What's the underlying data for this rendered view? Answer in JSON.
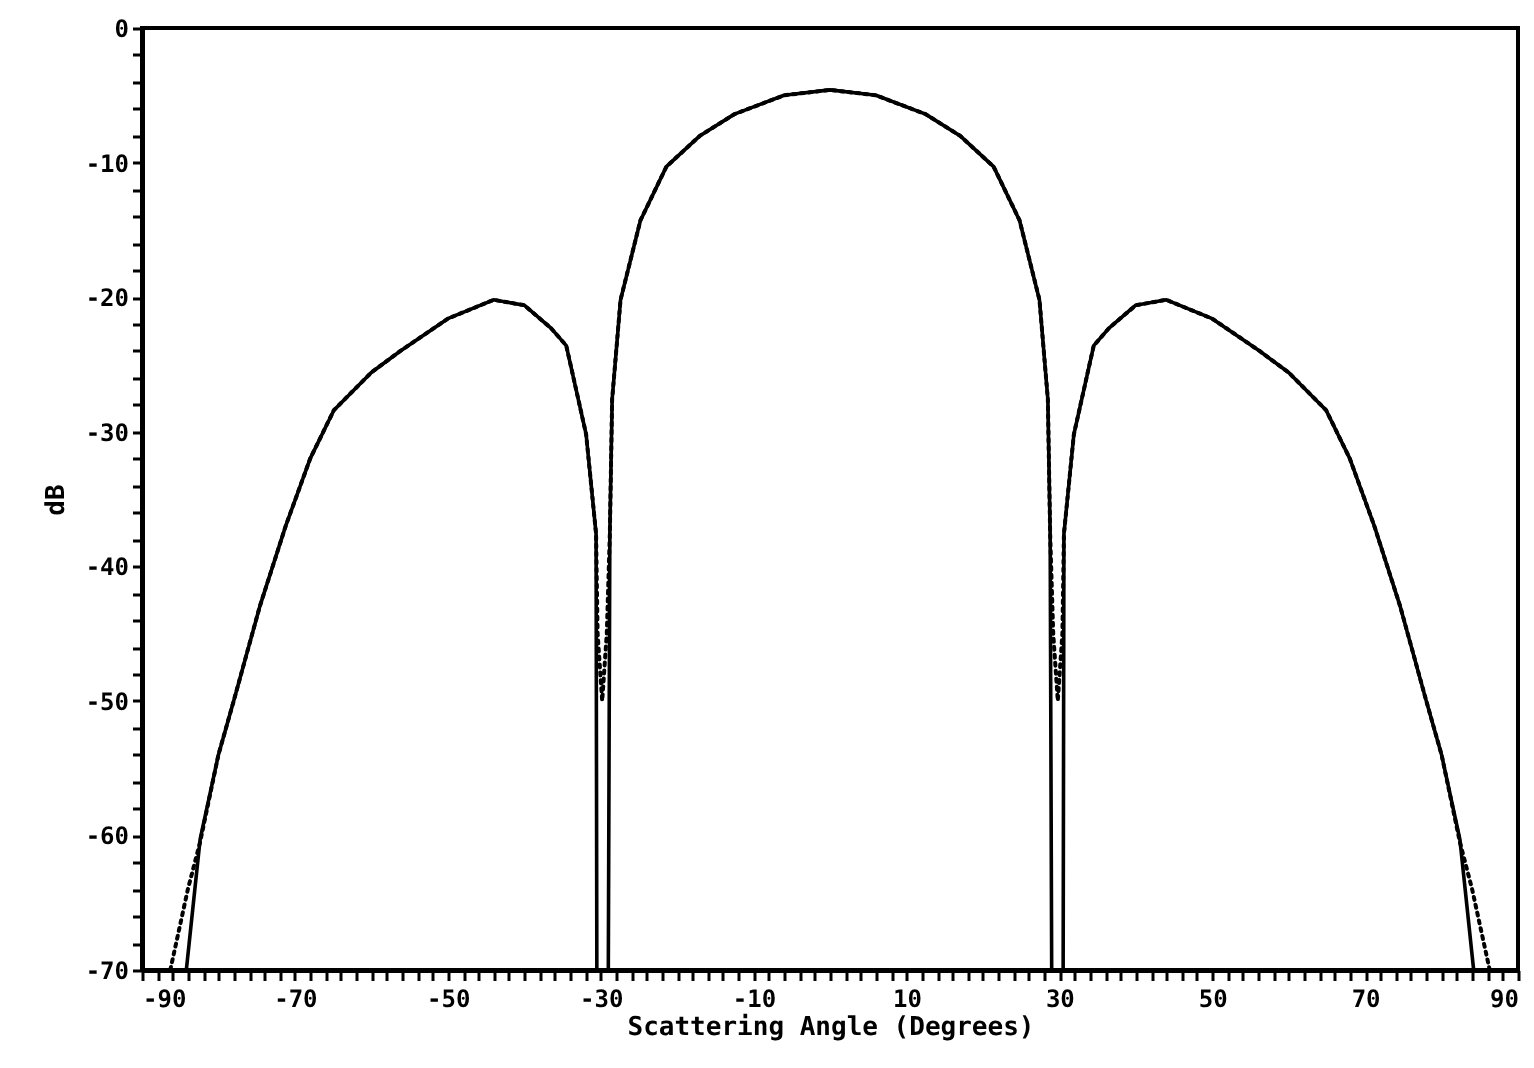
{
  "chart_data": {
    "type": "line",
    "xlabel": "Scattering Angle (Degrees)",
    "ylabel": "dB",
    "xlim": [
      -90,
      90
    ],
    "ylim": [
      -70,
      0
    ],
    "xticks": [
      -90,
      {
        "value": -88,
        "label": null
      },
      {
        "value": -86,
        "label": null
      },
      {
        "value": -84,
        "label": null
      },
      {
        "value": -82,
        "label": null
      },
      {
        "value": -80,
        "label": null
      },
      {
        "value": -78,
        "label": null
      },
      {
        "value": -76,
        "label": null
      },
      {
        "value": -74,
        "label": null
      },
      {
        "value": -72,
        "label": null
      },
      -70,
      {
        "value": -68,
        "label": null
      },
      {
        "value": -66,
        "label": null
      },
      {
        "value": -64,
        "label": null
      },
      {
        "value": -62,
        "label": null
      },
      {
        "value": -60,
        "label": null
      },
      {
        "value": -58,
        "label": null
      },
      {
        "value": -56,
        "label": null
      },
      {
        "value": -54,
        "label": null
      },
      {
        "value": -52,
        "label": null
      },
      -50,
      {
        "value": -48,
        "label": null
      },
      {
        "value": -46,
        "label": null
      },
      {
        "value": -44,
        "label": null
      },
      {
        "value": -42,
        "label": null
      },
      {
        "value": -40,
        "label": null
      },
      {
        "value": -38,
        "label": null
      },
      {
        "value": -36,
        "label": null
      },
      {
        "value": -34,
        "label": null
      },
      {
        "value": -32,
        "label": null
      },
      -30,
      {
        "value": -28,
        "label": null
      },
      {
        "value": -26,
        "label": null
      },
      {
        "value": -24,
        "label": null
      },
      {
        "value": -22,
        "label": null
      },
      {
        "value": -20,
        "label": null
      },
      {
        "value": -18,
        "label": null
      },
      {
        "value": -16,
        "label": null
      },
      {
        "value": -14,
        "label": null
      },
      {
        "value": -12,
        "label": null
      },
      -10,
      {
        "value": -8,
        "label": null
      },
      {
        "value": -6,
        "label": null
      },
      {
        "value": -4,
        "label": null
      },
      {
        "value": -2,
        "label": null
      },
      {
        "value": 0,
        "label": null
      },
      {
        "value": 2,
        "label": null
      },
      {
        "value": 4,
        "label": null
      },
      {
        "value": 6,
        "label": null
      },
      {
        "value": 8,
        "label": null
      },
      10,
      {
        "value": 12,
        "label": null
      },
      {
        "value": 14,
        "label": null
      },
      {
        "value": 16,
        "label": null
      },
      {
        "value": 18,
        "label": null
      },
      {
        "value": 20,
        "label": null
      },
      {
        "value": 22,
        "label": null
      },
      {
        "value": 24,
        "label": null
      },
      {
        "value": 26,
        "label": null
      },
      {
        "value": 28,
        "label": null
      },
      30,
      {
        "value": 32,
        "label": null
      },
      {
        "value": 34,
        "label": null
      },
      {
        "value": 36,
        "label": null
      },
      {
        "value": 38,
        "label": null
      },
      {
        "value": 40,
        "label": null
      },
      {
        "value": 42,
        "label": null
      },
      {
        "value": 44,
        "label": null
      },
      {
        "value": 46,
        "label": null
      },
      {
        "value": 48,
        "label": null
      },
      50,
      {
        "value": 52,
        "label": null
      },
      {
        "value": 54,
        "label": null
      },
      {
        "value": 56,
        "label": null
      },
      {
        "value": 58,
        "label": null
      },
      {
        "value": 60,
        "label": null
      },
      {
        "value": 62,
        "label": null
      },
      {
        "value": 64,
        "label": null
      },
      {
        "value": 66,
        "label": null
      },
      {
        "value": 68,
        "label": null
      },
      70,
      {
        "value": 72,
        "label": null
      },
      {
        "value": 74,
        "label": null
      },
      {
        "value": 76,
        "label": null
      },
      {
        "value": 78,
        "label": null
      },
      {
        "value": 80,
        "label": null
      },
      {
        "value": 82,
        "label": null
      },
      {
        "value": 84,
        "label": null
      },
      {
        "value": 86,
        "label": null
      },
      {
        "value": 88,
        "label": null
      },
      90
    ],
    "yticks": [
      -70,
      {
        "value": -68,
        "label": null
      },
      {
        "value": -66,
        "label": null
      },
      {
        "value": -64,
        "label": null
      },
      {
        "value": -62,
        "label": null
      },
      -60,
      {
        "value": -58,
        "label": null
      },
      {
        "value": -56,
        "label": null
      },
      {
        "value": -54,
        "label": null
      },
      {
        "value": -52,
        "label": null
      },
      -50,
      {
        "value": -48,
        "label": null
      },
      {
        "value": -46,
        "label": null
      },
      {
        "value": -44,
        "label": null
      },
      {
        "value": -42,
        "label": null
      },
      -40,
      {
        "value": -38,
        "label": null
      },
      {
        "value": -36,
        "label": null
      },
      {
        "value": -34,
        "label": null
      },
      {
        "value": -32,
        "label": null
      },
      -30,
      {
        "value": -28,
        "label": null
      },
      {
        "value": -26,
        "label": null
      },
      {
        "value": -24,
        "label": null
      },
      {
        "value": -22,
        "label": null
      },
      -20,
      {
        "value": -18,
        "label": null
      },
      {
        "value": -16,
        "label": null
      },
      {
        "value": -14,
        "label": null
      },
      {
        "value": -12,
        "label": null
      },
      -10,
      {
        "value": -8,
        "label": null
      },
      {
        "value": -6,
        "label": null
      },
      {
        "value": -4,
        "label": null
      },
      {
        "value": -2,
        "label": null
      },
      0
    ],
    "grid": false,
    "marker": "none",
    "series": [
      {
        "color": "#000000",
        "line_style": "solid",
        "x": [
          -84.2,
          -82.4,
          -80,
          -78,
          -74.6,
          -71.2,
          -68,
          -64.9,
          -60,
          -56.2,
          -50,
          -44,
          -40,
          -36.5,
          -34.5,
          -31.9,
          -30.6,
          -30.5,
          -29,
          -28.8,
          -28.5,
          -27.4,
          -24.8,
          -21.4,
          -17,
          -12.5,
          -6,
          0,
          6,
          12.5,
          17,
          21.4,
          24.8,
          27.4,
          28.5,
          28.8,
          29,
          30.5,
          30.6,
          31.9,
          34.5,
          36.5,
          40,
          44,
          50,
          56.2,
          60,
          64.9,
          68,
          71.2,
          74.6,
          78,
          80,
          82.4,
          84.2
        ],
        "values": [
          -70,
          -60.3,
          -54,
          -50,
          -43,
          -37,
          -32,
          -28.4,
          -25.6,
          -24,
          -21.6,
          -20.2,
          -20.6,
          -22.3,
          -23.6,
          -30.2,
          -37.6,
          -70,
          -70,
          -37.6,
          -27.6,
          -20.2,
          -14.3,
          -10.3,
          -8,
          -6.4,
          -5,
          -4.6,
          -5,
          -6.4,
          -8,
          -10.3,
          -14.3,
          -20.2,
          -27.6,
          -37.6,
          -70,
          -70,
          -37.6,
          -30.2,
          -23.6,
          -22.3,
          -20.6,
          -20.2,
          -21.6,
          -24,
          -25.6,
          -28.4,
          -32,
          -37,
          -43,
          -50,
          -54,
          -60.3,
          -70
        ]
      },
      {
        "color": "#000000",
        "line_style": "dotted",
        "x": [
          -86.3,
          -84,
          -82.4,
          -80,
          -78,
          -74.6,
          -71.2,
          -68,
          -64.9,
          -60,
          -56.2,
          -50,
          -44,
          -40,
          -36.5,
          -34.5,
          -31.9,
          -30.6,
          -30.4,
          -29.8,
          -29.2,
          -28.8,
          -28.5,
          -27.4,
          -24.8,
          -21.4,
          -17,
          -12.5,
          -6,
          0,
          6,
          12.5,
          17,
          21.4,
          24.8,
          27.4,
          28.5,
          28.8,
          29.2,
          29.8,
          30.4,
          30.6,
          31.9,
          34.5,
          36.5,
          40,
          44,
          50,
          56.2,
          60,
          64.9,
          68,
          71.2,
          74.6,
          78,
          80,
          82.4,
          84,
          86.3
        ],
        "values": [
          -70,
          -64,
          -60.5,
          -54,
          -50,
          -43,
          -37,
          -32,
          -28.4,
          -25.6,
          -24,
          -21.6,
          -20.2,
          -20.6,
          -22.3,
          -23.6,
          -30.2,
          -37.6,
          -45,
          -50,
          -45,
          -37.6,
          -27.6,
          -20.2,
          -14.3,
          -10.3,
          -8,
          -6.4,
          -5,
          -4.6,
          -5,
          -6.4,
          -8,
          -10.3,
          -14.3,
          -20.2,
          -27.6,
          -37.6,
          -45,
          -50,
          -45,
          -37.6,
          -30.2,
          -23.6,
          -22.3,
          -20.6,
          -20.2,
          -21.6,
          -24,
          -25.6,
          -28.4,
          -32,
          -37,
          -43,
          -50,
          -54,
          -60.5,
          -64,
          -70
        ]
      }
    ]
  }
}
